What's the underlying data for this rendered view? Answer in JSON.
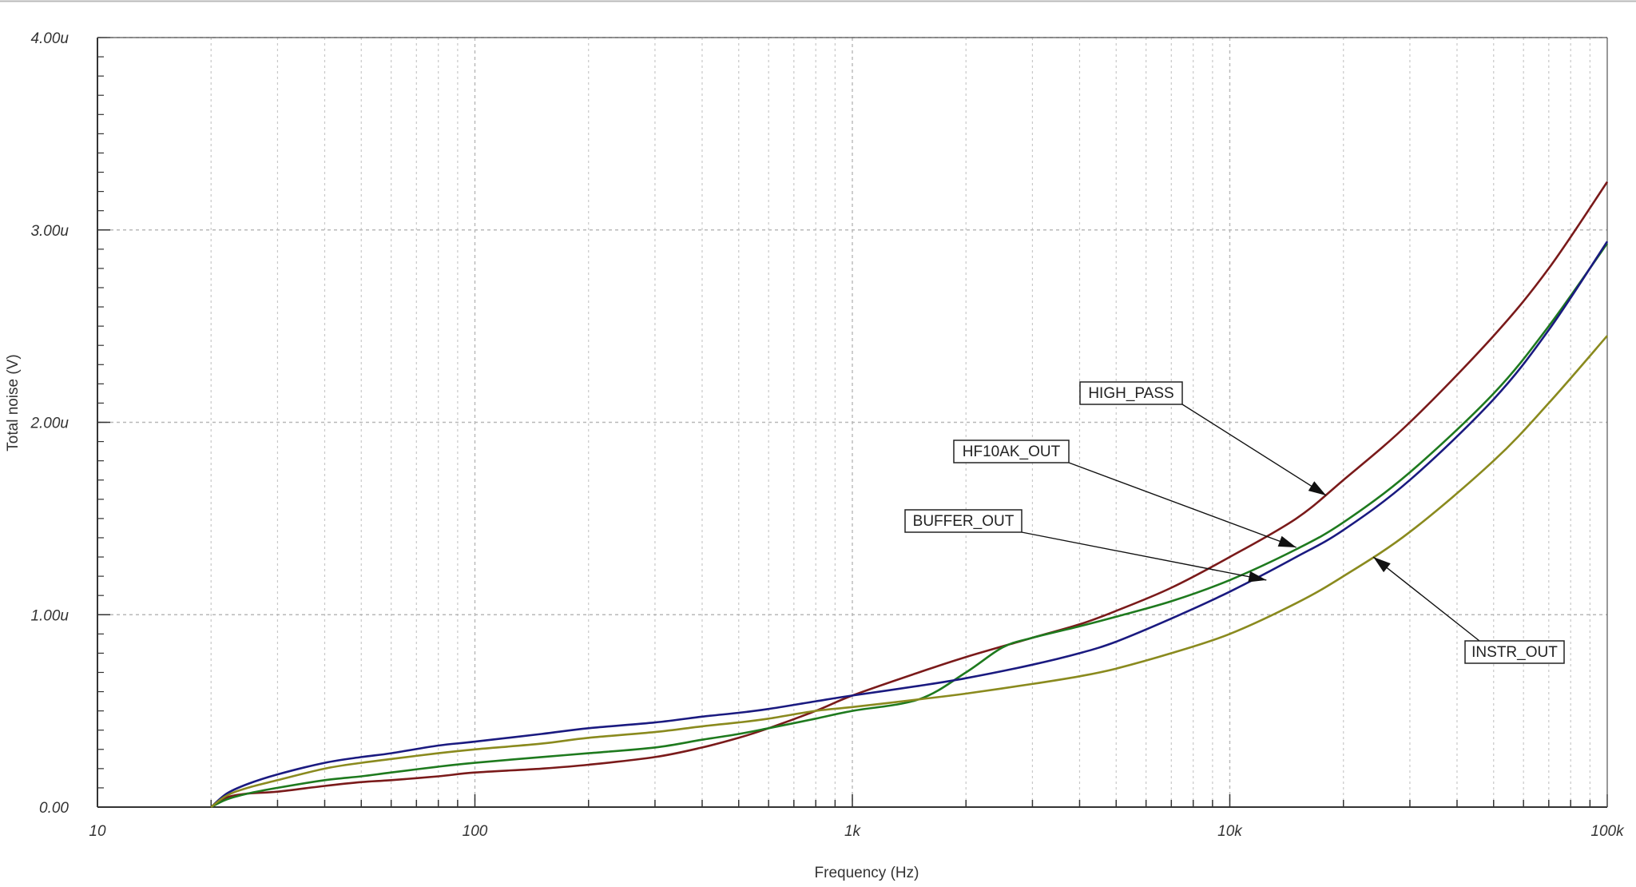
{
  "chart_data": {
    "type": "line",
    "title": "",
    "xlabel": "Frequency (Hz)",
    "ylabel": "Total noise (V)",
    "x_scale": "log",
    "xlim": [
      10,
      100000
    ],
    "ylim": [
      0,
      4.0
    ],
    "y_unit": "uV",
    "grid": true,
    "x_ticks": [
      {
        "value": 10,
        "label": "10"
      },
      {
        "value": 100,
        "label": "100"
      },
      {
        "value": 1000,
        "label": "1k"
      },
      {
        "value": 10000,
        "label": "10k"
      },
      {
        "value": 100000,
        "label": "100k"
      }
    ],
    "y_ticks": [
      {
        "value": 0,
        "label": "0.00"
      },
      {
        "value": 1,
        "label": "1.00u"
      },
      {
        "value": 2,
        "label": "2.00u"
      },
      {
        "value": 3,
        "label": "3.00u"
      },
      {
        "value": 4,
        "label": "4.00u"
      }
    ],
    "series": [
      {
        "name": "HIGH_PASS",
        "color": "#7a1a1a",
        "points": [
          [
            20,
            0
          ],
          [
            22,
            0.05
          ],
          [
            25,
            0.07
          ],
          [
            30,
            0.08
          ],
          [
            40,
            0.11
          ],
          [
            50,
            0.13
          ],
          [
            60,
            0.14
          ],
          [
            80,
            0.16
          ],
          [
            100,
            0.18
          ],
          [
            150,
            0.2
          ],
          [
            200,
            0.22
          ],
          [
            300,
            0.26
          ],
          [
            400,
            0.31
          ],
          [
            500,
            0.36
          ],
          [
            600,
            0.41
          ],
          [
            800,
            0.5
          ],
          [
            1000,
            0.58
          ],
          [
            1500,
            0.7
          ],
          [
            2000,
            0.78
          ],
          [
            3000,
            0.88
          ],
          [
            4000,
            0.95
          ],
          [
            5000,
            1.02
          ],
          [
            7000,
            1.14
          ],
          [
            10000,
            1.3
          ],
          [
            15000,
            1.5
          ],
          [
            20000,
            1.7
          ],
          [
            30000,
            2.0
          ],
          [
            50000,
            2.45
          ],
          [
            70000,
            2.8
          ],
          [
            100000,
            3.25
          ]
        ],
        "label_anchor": [
          18000,
          1.62
        ]
      },
      {
        "name": "HF10AK_OUT",
        "color": "#1e7a1e",
        "points": [
          [
            20,
            0
          ],
          [
            22,
            0.04
          ],
          [
            25,
            0.07
          ],
          [
            30,
            0.1
          ],
          [
            40,
            0.14
          ],
          [
            50,
            0.16
          ],
          [
            60,
            0.18
          ],
          [
            80,
            0.21
          ],
          [
            100,
            0.23
          ],
          [
            150,
            0.26
          ],
          [
            200,
            0.28
          ],
          [
            300,
            0.31
          ],
          [
            400,
            0.35
          ],
          [
            500,
            0.38
          ],
          [
            600,
            0.41
          ],
          [
            800,
            0.46
          ],
          [
            1000,
            0.5
          ],
          [
            1500,
            0.56
          ],
          [
            2000,
            0.7
          ],
          [
            2500,
            0.83
          ],
          [
            3000,
            0.88
          ],
          [
            4000,
            0.94
          ],
          [
            5000,
            0.99
          ],
          [
            7000,
            1.07
          ],
          [
            10000,
            1.18
          ],
          [
            15000,
            1.34
          ],
          [
            20000,
            1.48
          ],
          [
            30000,
            1.74
          ],
          [
            50000,
            2.15
          ],
          [
            70000,
            2.5
          ],
          [
            100000,
            2.93
          ]
        ],
        "label_anchor": [
          15000,
          1.35
        ]
      },
      {
        "name": "BUFFER_OUT",
        "color": "#1a1a80",
        "points": [
          [
            20,
            0
          ],
          [
            22,
            0.07
          ],
          [
            25,
            0.12
          ],
          [
            30,
            0.17
          ],
          [
            40,
            0.23
          ],
          [
            50,
            0.26
          ],
          [
            60,
            0.28
          ],
          [
            80,
            0.32
          ],
          [
            100,
            0.34
          ],
          [
            150,
            0.38
          ],
          [
            200,
            0.41
          ],
          [
            300,
            0.44
          ],
          [
            400,
            0.47
          ],
          [
            500,
            0.49
          ],
          [
            600,
            0.51
          ],
          [
            800,
            0.55
          ],
          [
            1000,
            0.58
          ],
          [
            1500,
            0.63
          ],
          [
            2000,
            0.67
          ],
          [
            3000,
            0.74
          ],
          [
            4000,
            0.8
          ],
          [
            5000,
            0.86
          ],
          [
            7000,
            0.98
          ],
          [
            10000,
            1.12
          ],
          [
            15000,
            1.3
          ],
          [
            20000,
            1.44
          ],
          [
            30000,
            1.7
          ],
          [
            50000,
            2.12
          ],
          [
            70000,
            2.48
          ],
          [
            100000,
            2.94
          ]
        ],
        "label_anchor": [
          12500,
          1.18
        ]
      },
      {
        "name": "INSTR_OUT",
        "color": "#8a8a1e",
        "points": [
          [
            20,
            0
          ],
          [
            22,
            0.06
          ],
          [
            25,
            0.1
          ],
          [
            30,
            0.14
          ],
          [
            40,
            0.2
          ],
          [
            50,
            0.23
          ],
          [
            60,
            0.25
          ],
          [
            80,
            0.28
          ],
          [
            100,
            0.3
          ],
          [
            150,
            0.33
          ],
          [
            200,
            0.36
          ],
          [
            300,
            0.39
          ],
          [
            400,
            0.42
          ],
          [
            500,
            0.44
          ],
          [
            600,
            0.46
          ],
          [
            800,
            0.5
          ],
          [
            1000,
            0.52
          ],
          [
            1500,
            0.56
          ],
          [
            2000,
            0.59
          ],
          [
            3000,
            0.64
          ],
          [
            4000,
            0.68
          ],
          [
            5000,
            0.72
          ],
          [
            7000,
            0.8
          ],
          [
            10000,
            0.9
          ],
          [
            15000,
            1.06
          ],
          [
            20000,
            1.2
          ],
          [
            30000,
            1.43
          ],
          [
            50000,
            1.8
          ],
          [
            70000,
            2.1
          ],
          [
            100000,
            2.45
          ]
        ],
        "label_anchor": [
          24000,
          1.3
        ]
      }
    ]
  }
}
